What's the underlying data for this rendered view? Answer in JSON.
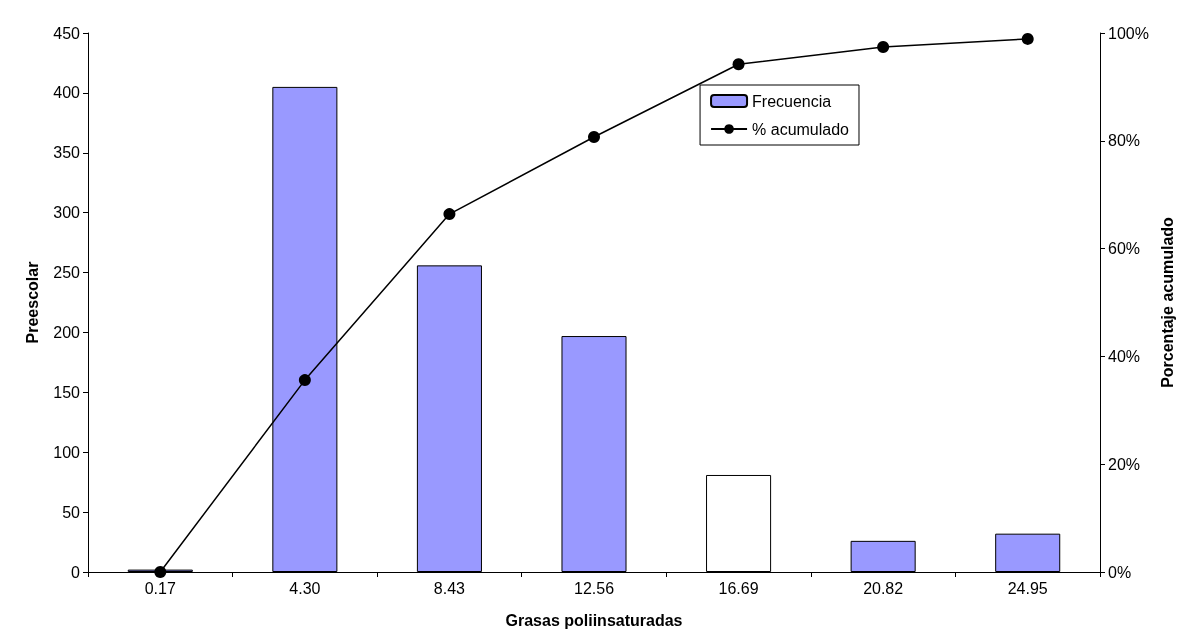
{
  "chart_data": {
    "type": "bar",
    "xlabel": "Grasas poliinsaturadas",
    "ylabel": "Preescolar",
    "y2label": "Porcentaje acumulado",
    "categories": [
      "0.17",
      "4.30",
      "8.43",
      "12.56",
      "16.69",
      "20.82",
      "24.95"
    ],
    "series": [
      {
        "name": "Frecuencia",
        "colors": [
          "#9999ff",
          "#9999ff",
          "#9999ff",
          "#9999ff",
          "#ffffff",
          "#9999ff",
          "#9999ff"
        ],
        "values": [
          2,
          405,
          256,
          197,
          81,
          26,
          32
        ]
      },
      {
        "name": "% acumulado",
        "type": "line",
        "axis": "y2",
        "color": "#000000",
        "values": [
          0,
          35.6,
          66.4,
          80.7,
          94.2,
          97.4,
          98.9
        ]
      }
    ],
    "ylim": [
      0,
      450
    ],
    "yticks": [
      0,
      50,
      100,
      150,
      200,
      250,
      300,
      350,
      400,
      450
    ],
    "y2lim": [
      0,
      100
    ],
    "y2ticks": [
      {
        "value": 0,
        "label": "0%"
      },
      {
        "value": 20,
        "label": "20%"
      },
      {
        "value": 40,
        "label": "40%"
      },
      {
        "value": 60,
        "label": "60%"
      },
      {
        "value": 80,
        "label": "80%"
      },
      {
        "value": 100,
        "label": "100%"
      }
    ],
    "grid": false,
    "legend": "top right",
    "marker": "circle",
    "line_style": "solid"
  }
}
